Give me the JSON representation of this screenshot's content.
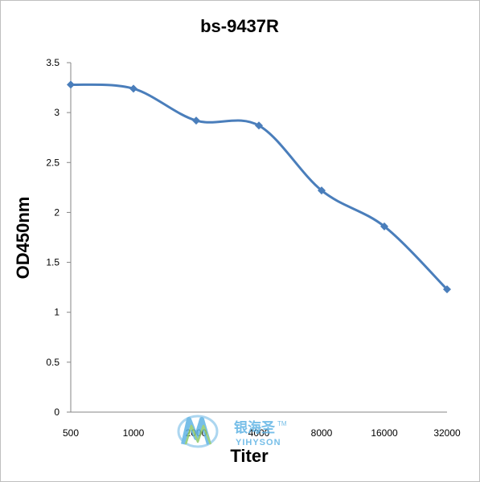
{
  "chart_data": {
    "type": "line",
    "title": "bs-9437R",
    "xlabel": "Titer",
    "ylabel": "OD450nm",
    "categories": [
      "500",
      "1000",
      "2000",
      "4000",
      "8000",
      "16000",
      "32000"
    ],
    "series": [
      {
        "values": [
          3.28,
          3.24,
          2.92,
          2.87,
          2.22,
          1.86,
          1.23
        ]
      }
    ],
    "ylim": [
      0,
      3.5
    ],
    "yticks": [
      "0",
      "0.5",
      "1",
      "1.5",
      "2",
      "2.5",
      "3",
      "3.5"
    ],
    "grid": false,
    "legend": "none",
    "line_color": "#4a7ebb"
  },
  "watermark": {
    "cn": "银海圣",
    "en": "YIHYSON",
    "tm": "TM"
  }
}
